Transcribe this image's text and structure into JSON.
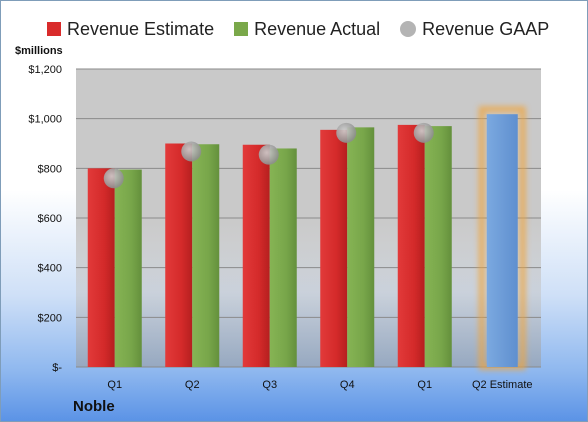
{
  "company": "Noble",
  "unit_label": "$millions",
  "colors": {
    "estimate": "#d92b2b",
    "actual": "#7aa84a",
    "gaap": "#a8a8a8",
    "forecast": "#6f9fd8",
    "forecast_glow": "#f0a53c",
    "plot_bg": "#c8c8c8"
  },
  "chart_data": {
    "type": "bar",
    "categories": [
      "Q1",
      "Q2",
      "Q3",
      "Q4",
      "Q1",
      "Q2 Estimate"
    ],
    "ylim": [
      0,
      1200
    ],
    "yticks": [
      0,
      200,
      400,
      600,
      800,
      1000,
      1200
    ],
    "ytick_labels": [
      "$-",
      "$200",
      "$400",
      "$600",
      "$800",
      "$1,000",
      "$1,200"
    ],
    "grid": true,
    "legend_position": "top",
    "series": [
      {
        "name": "Revenue Estimate",
        "type": "bar",
        "values": [
          800,
          900,
          895,
          955,
          975,
          null
        ]
      },
      {
        "name": "Revenue Actual",
        "type": "bar",
        "values": [
          795,
          897,
          880,
          965,
          970,
          1018
        ]
      },
      {
        "name": "Revenue GAAP",
        "type": "marker",
        "values": [
          760,
          868,
          855,
          943,
          943,
          null
        ]
      }
    ]
  }
}
